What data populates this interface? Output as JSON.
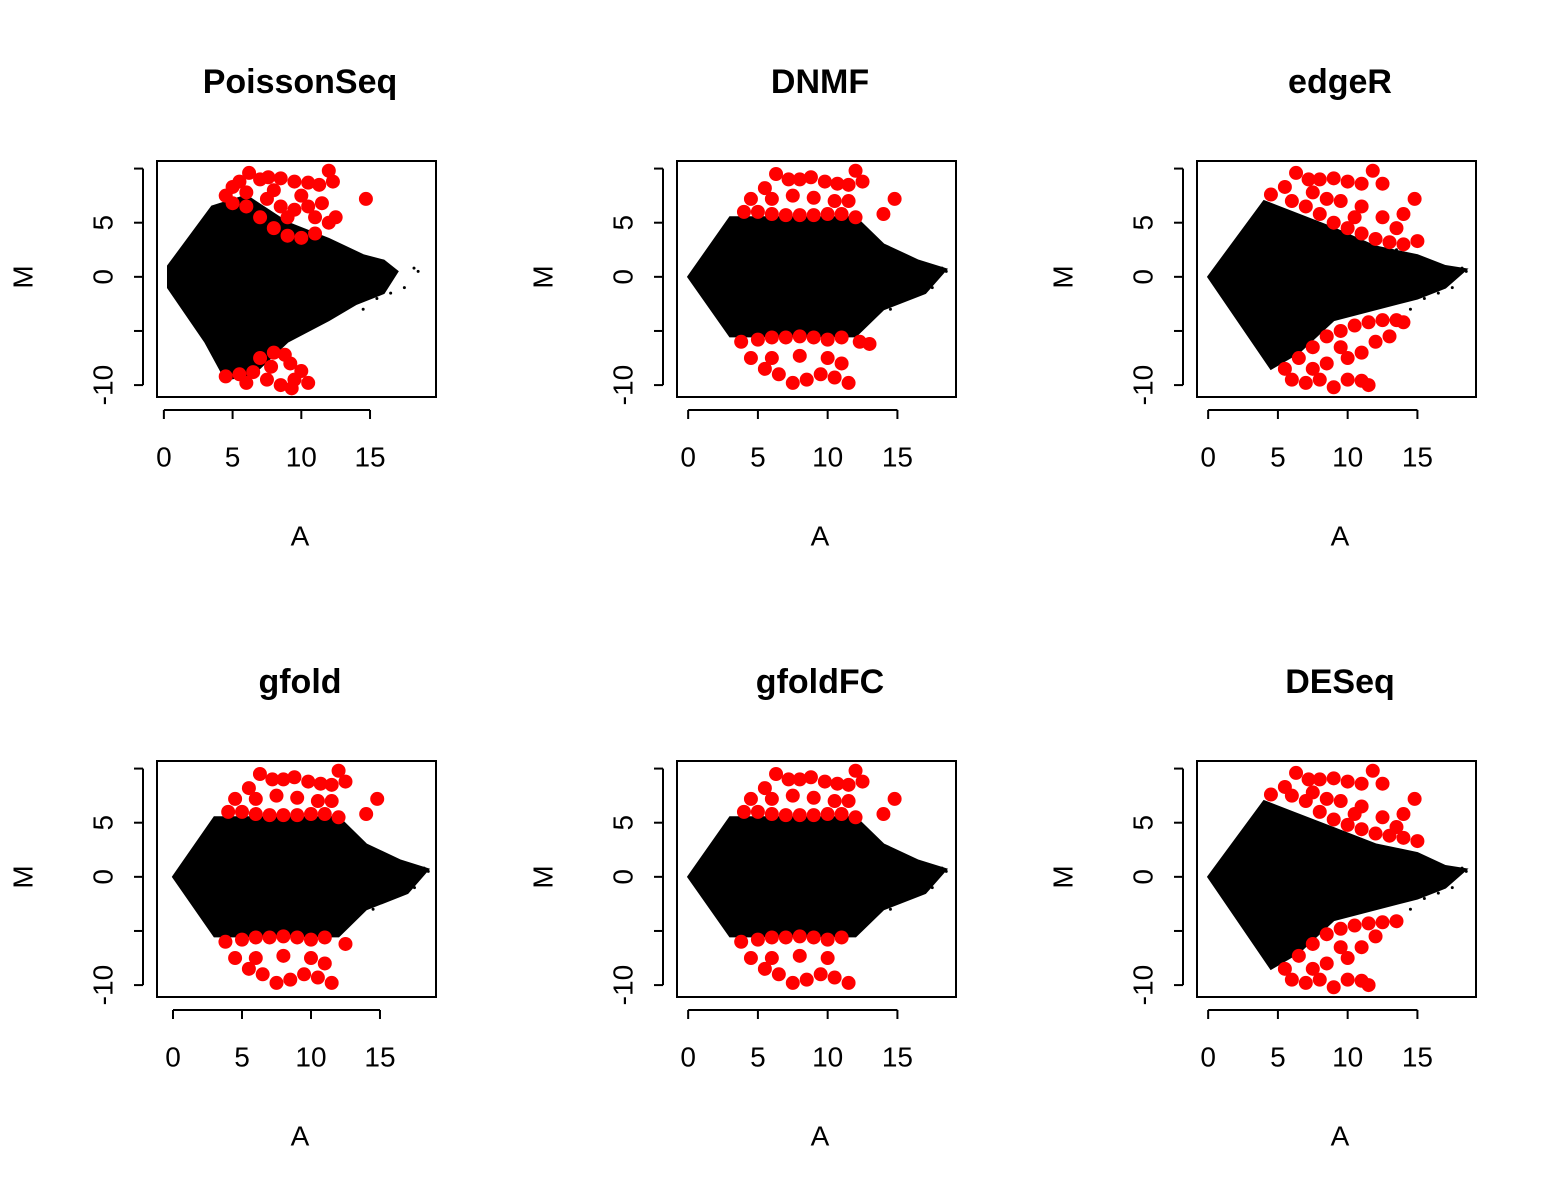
{
  "chart_data": [
    {
      "type": "scatter",
      "title": "PoissonSeq",
      "xlabel": "A",
      "ylabel": "M",
      "xlim": [
        -0.5,
        19.8
      ],
      "ylim": [
        -11.1,
        10.7
      ],
      "xticks": [
        0,
        5,
        10,
        15
      ],
      "yticks": [
        -10,
        {
          "value": -5,
          "label": null
        },
        0,
        5,
        {
          "value": 10,
          "label": null
        }
      ],
      "series": [
        {
          "kind": "area",
          "color": "#000000",
          "x": [
            0.3,
            3.5,
            6,
            9,
            12,
            14.5,
            16,
            17,
            16,
            14,
            12,
            9,
            6.5,
            4.5,
            3,
            0.3
          ],
          "y": [
            1,
            6.5,
            7.5,
            5,
            3.5,
            2,
            1.5,
            0.5,
            -1.5,
            -2.5,
            -4,
            -6,
            -9,
            -9.5,
            -6,
            -1
          ]
        },
        {
          "color": "#000000",
          "marker_size": 1.5,
          "x": [
            16,
            17.5,
            18.2,
            18.5,
            15.5,
            16.5,
            14.5,
            13.5
          ],
          "y": [
            1.2,
            -1,
            0.8,
            0.5,
            -2,
            -1.5,
            -3,
            2.5
          ]
        },
        {
          "color": "#ff0000",
          "marker_size": 7,
          "x": [
            4.5,
            5,
            5.5,
            6.2,
            7,
            7.6,
            8.5,
            9.5,
            10.5,
            11.3,
            12,
            12.3,
            14.7,
            5,
            6,
            7,
            8,
            9,
            10,
            11,
            12,
            12.5,
            6,
            7.5,
            8.5,
            9.5,
            10.5,
            11.5,
            8,
            10,
            11,
            9,
            4.5,
            5.5,
            6.5,
            7,
            8,
            8.8,
            9.2,
            7.5,
            8.5,
            9.5,
            10.5,
            6,
            10,
            9.3,
            7.8
          ],
          "y": [
            7.5,
            8.3,
            8.8,
            9.6,
            9,
            9.2,
            9.1,
            8.8,
            8.7,
            8.5,
            9.8,
            8.8,
            7.2,
            6.8,
            6.5,
            5.5,
            4.5,
            3.8,
            3.6,
            4,
            5,
            5.5,
            7.8,
            7.2,
            6.5,
            6.2,
            6.5,
            6.8,
            8,
            7.5,
            5.5,
            5.5,
            -9.2,
            -9,
            -8.8,
            -7.5,
            -7,
            -7.2,
            -8,
            -9.5,
            -10,
            -9.5,
            -9.8,
            -9.8,
            -8.7,
            -10.3,
            -8.3
          ]
        }
      ]
    },
    {
      "type": "scatter",
      "title": "DNMF",
      "xlabel": "A",
      "ylabel": "M",
      "xlim": [
        -0.8,
        19.2
      ],
      "ylim": [
        -11.1,
        10.7
      ],
      "xticks": [
        0,
        5,
        10,
        15
      ],
      "yticks": [
        -10,
        {
          "value": -5,
          "label": null
        },
        0,
        5,
        {
          "value": 10,
          "label": null
        }
      ],
      "series": [
        {
          "kind": "area",
          "color": "#000000",
          "x": [
            0,
            3,
            12,
            14,
            16.5,
            18.5,
            17,
            14,
            12,
            3
          ],
          "y": [
            0,
            5.5,
            5.5,
            3,
            1.5,
            0.7,
            -1.5,
            -3,
            -5.5,
            -5.5
          ]
        },
        {
          "color": "#000000",
          "marker_size": 1.5,
          "x": [
            16,
            17.5,
            18.2,
            18.5,
            15.5,
            16.5,
            14.5,
            13.5
          ],
          "y": [
            1.2,
            -1,
            0.8,
            0.5,
            -2,
            -1.5,
            -3,
            2.5
          ]
        },
        {
          "color": "#ff0000",
          "marker_size": 7,
          "x": [
            4,
            5,
            6,
            7,
            8,
            9,
            10,
            11,
            12,
            4.5,
            5.5,
            6.3,
            7.2,
            8,
            8.8,
            9.8,
            10.7,
            11.5,
            12,
            12.5,
            14.8,
            14,
            6,
            7.5,
            9,
            10.5,
            11.5,
            3.8,
            5,
            6,
            7,
            8,
            9,
            10,
            11,
            12.3,
            13,
            4.5,
            5.5,
            6.5,
            7.5,
            8.5,
            9.5,
            10.5,
            11.5,
            6,
            8,
            10,
            11
          ],
          "y": [
            6,
            6,
            5.8,
            5.7,
            5.7,
            5.7,
            5.8,
            5.8,
            5.5,
            7.2,
            8.2,
            9.5,
            9,
            9,
            9.2,
            8.8,
            8.6,
            8.5,
            9.8,
            8.8,
            7.2,
            5.8,
            7.2,
            7.5,
            7.3,
            7,
            7,
            -6,
            -5.8,
            -5.6,
            -5.6,
            -5.5,
            -5.6,
            -5.8,
            -5.6,
            -6,
            -6.2,
            -7.5,
            -8.5,
            -9,
            -9.8,
            -9.5,
            -9,
            -9.3,
            -9.8,
            -7.5,
            -7.3,
            -7.5,
            -8
          ]
        }
      ]
    },
    {
      "type": "scatter",
      "title": "edgeR",
      "xlabel": "A",
      "ylabel": "M",
      "xlim": [
        -0.8,
        19.2
      ],
      "ylim": [
        -11.1,
        10.7
      ],
      "xticks": [
        0,
        5,
        10,
        15
      ],
      "yticks": [
        -10,
        {
          "value": -5,
          "label": null
        },
        0,
        5,
        {
          "value": 10,
          "label": null
        }
      ],
      "series": [
        {
          "kind": "area",
          "color": "#000000",
          "x": [
            0,
            4,
            6,
            9,
            12,
            15,
            17,
            18.5,
            17,
            15,
            12,
            9,
            6.5,
            4.5
          ],
          "y": [
            0,
            7,
            6,
            4.5,
            2.8,
            2,
            1,
            0.7,
            -1,
            -2,
            -3,
            -4,
            -7,
            -8.5
          ]
        },
        {
          "color": "#000000",
          "marker_size": 1.5,
          "x": [
            16,
            17.5,
            18.2,
            18.5,
            15.5,
            16.5,
            14.5,
            13.5
          ],
          "y": [
            1.2,
            -1,
            0.8,
            0.5,
            -2,
            -1.5,
            -3,
            2.5
          ]
        },
        {
          "color": "#ff0000",
          "marker_size": 7,
          "x": [
            4.5,
            5.5,
            6.3,
            7.2,
            8,
            9,
            10,
            11,
            11.8,
            12.5,
            14.8,
            14,
            15,
            6,
            7,
            8,
            9,
            10,
            11,
            12,
            13,
            14,
            7.5,
            9.5,
            11,
            12.5,
            13.5,
            10.5,
            8.5,
            5.5,
            6.5,
            7.5,
            8.5,
            9.5,
            10.5,
            11.5,
            12.5,
            13.5,
            14,
            13,
            12,
            11,
            6,
            7,
            8,
            9,
            10,
            11,
            11.5,
            8.5,
            10,
            7.5,
            9.5
          ],
          "y": [
            7.6,
            8.3,
            9.6,
            9,
            9,
            9.1,
            8.8,
            8.6,
            9.8,
            8.6,
            7.2,
            5.8,
            3.3,
            7,
            6.5,
            5.8,
            5,
            4.5,
            4,
            3.5,
            3.2,
            3,
            7.8,
            7,
            6.5,
            5.5,
            4.5,
            5.5,
            7.2,
            -8.5,
            -7.5,
            -6.5,
            -5.5,
            -5,
            -4.5,
            -4.2,
            -4,
            -4,
            -4.2,
            -5.5,
            -6,
            -7,
            -9.5,
            -9.8,
            -9.5,
            -10.2,
            -9.5,
            -9.6,
            -10,
            -8,
            -7.5,
            -8.5,
            -6.5
          ]
        }
      ]
    },
    {
      "type": "scatter",
      "title": "gfold",
      "xlabel": "A",
      "ylabel": "M",
      "xlim": [
        -1.16,
        19.06
      ],
      "ylim": [
        -11.1,
        10.7
      ],
      "xticks": [
        0,
        5,
        10,
        15
      ],
      "yticks": [
        -10,
        {
          "value": -5,
          "label": null
        },
        0,
        5,
        {
          "value": 10,
          "label": null
        }
      ],
      "series": [
        {
          "kind": "area",
          "color": "#000000",
          "x": [
            0,
            3,
            12,
            14,
            16.5,
            18.5,
            17,
            14,
            12,
            3
          ],
          "y": [
            0,
            5.5,
            5.5,
            3,
            1.5,
            0.7,
            -1.5,
            -3,
            -5.5,
            -5.5
          ]
        },
        {
          "color": "#000000",
          "marker_size": 1.5,
          "x": [
            16,
            17.5,
            18.2,
            18.5,
            15.5,
            16.5,
            14.5,
            13.5
          ],
          "y": [
            1.2,
            -1,
            0.8,
            0.5,
            -2,
            -1.5,
            -3,
            2.5
          ]
        },
        {
          "color": "#ff0000",
          "marker_size": 7,
          "x": [
            4,
            5,
            6,
            7,
            8,
            9,
            10,
            11,
            12,
            4.5,
            5.5,
            6.3,
            7.2,
            8,
            8.8,
            9.8,
            10.7,
            11.5,
            12,
            12.5,
            14.8,
            14,
            6,
            7.5,
            9,
            10.5,
            11.5,
            3.8,
            5,
            6,
            7,
            8,
            9,
            10,
            11,
            12.5,
            4.5,
            5.5,
            6.5,
            7.5,
            8.5,
            9.5,
            10.5,
            11.5,
            6,
            8,
            10,
            11
          ],
          "y": [
            6,
            6,
            5.8,
            5.7,
            5.7,
            5.7,
            5.8,
            5.8,
            5.5,
            7.2,
            8.2,
            9.5,
            9,
            9,
            9.2,
            8.8,
            8.6,
            8.5,
            9.8,
            8.8,
            7.2,
            5.8,
            7.2,
            7.5,
            7.3,
            7,
            7,
            -6,
            -5.8,
            -5.6,
            -5.6,
            -5.5,
            -5.6,
            -5.8,
            -5.6,
            -6.2,
            -7.5,
            -8.5,
            -9,
            -9.8,
            -9.5,
            -9,
            -9.3,
            -9.8,
            -7.5,
            -7.3,
            -7.5,
            -8
          ]
        }
      ]
    },
    {
      "type": "scatter",
      "title": "gfoldFC",
      "xlabel": "A",
      "ylabel": "M",
      "xlim": [
        -0.8,
        19.2
      ],
      "ylim": [
        -11.1,
        10.7
      ],
      "xticks": [
        0,
        5,
        10,
        15
      ],
      "yticks": [
        -10,
        {
          "value": -5,
          "label": null
        },
        0,
        5,
        {
          "value": 10,
          "label": null
        }
      ],
      "series": [
        {
          "kind": "area",
          "color": "#000000",
          "x": [
            0,
            3,
            12,
            14,
            16.5,
            18.5,
            17,
            14,
            12,
            3
          ],
          "y": [
            0,
            5.5,
            5.5,
            3,
            1.5,
            0.7,
            -1.5,
            -3,
            -5.5,
            -5.5
          ]
        },
        {
          "color": "#000000",
          "marker_size": 1.5,
          "x": [
            16,
            17.5,
            18.2,
            18.5,
            15.5,
            16.5,
            14.5,
            13.5
          ],
          "y": [
            1.2,
            -1,
            0.8,
            0.5,
            -2,
            -1.5,
            -3,
            2.5
          ]
        },
        {
          "color": "#ff0000",
          "marker_size": 7,
          "x": [
            4,
            5,
            6,
            7,
            8,
            9,
            10,
            11,
            12,
            4.5,
            5.5,
            6.3,
            7.2,
            8,
            8.8,
            9.8,
            10.7,
            11.5,
            12,
            12.5,
            14.8,
            14,
            6,
            7.5,
            9,
            10.5,
            11.5,
            3.8,
            5,
            6,
            7,
            8,
            9,
            10,
            11,
            4.5,
            5.5,
            6.5,
            7.5,
            8.5,
            9.5,
            10.5,
            11.5,
            6,
            8,
            10
          ],
          "y": [
            6,
            6,
            5.8,
            5.7,
            5.7,
            5.7,
            5.8,
            5.8,
            5.5,
            7.2,
            8.2,
            9.5,
            9,
            9,
            9.2,
            8.8,
            8.6,
            8.5,
            9.8,
            8.8,
            7.2,
            5.8,
            7.2,
            7.5,
            7.3,
            7,
            7,
            -6,
            -5.8,
            -5.6,
            -5.6,
            -5.5,
            -5.6,
            -5.8,
            -5.6,
            -7.5,
            -8.5,
            -9,
            -9.8,
            -9.5,
            -9,
            -9.3,
            -9.8,
            -7.5,
            -7.3,
            -7.5
          ]
        }
      ]
    },
    {
      "type": "scatter",
      "title": "DESeq",
      "xlabel": "A",
      "ylabel": "M",
      "xlim": [
        -0.8,
        19.2
      ],
      "ylim": [
        -11.1,
        10.7
      ],
      "xticks": [
        0,
        5,
        10,
        15
      ],
      "yticks": [
        -10,
        {
          "value": -5,
          "label": null
        },
        0,
        5,
        {
          "value": 10,
          "label": null
        }
      ],
      "series": [
        {
          "kind": "area",
          "color": "#000000",
          "x": [
            0,
            4,
            6,
            9,
            12,
            15,
            17,
            18.5,
            17,
            15,
            12,
            9,
            6.5,
            4.5
          ],
          "y": [
            0,
            7,
            6,
            4.5,
            3,
            2.2,
            1,
            0.7,
            -1,
            -2,
            -3,
            -4,
            -7,
            -8.5
          ]
        },
        {
          "color": "#000000",
          "marker_size": 1.5,
          "x": [
            16,
            17.5,
            18.2,
            18.5,
            15.5,
            16.5,
            14.5,
            13.5
          ],
          "y": [
            1.2,
            -1,
            0.8,
            0.5,
            -2,
            -1.5,
            -3,
            2.5
          ]
        },
        {
          "color": "#ff0000",
          "marker_size": 7,
          "x": [
            4.5,
            5.5,
            6.3,
            7.2,
            8,
            9,
            10,
            11,
            11.8,
            12.5,
            14.8,
            14,
            15,
            6,
            7,
            8,
            9,
            10,
            11,
            12,
            13,
            14,
            7.5,
            9.5,
            11,
            12.5,
            13.5,
            10.5,
            8.5,
            5.5,
            6.5,
            7.5,
            8.5,
            9.5,
            10.5,
            11.5,
            12.5,
            13.5,
            12,
            11,
            6,
            7,
            8,
            9,
            10,
            11,
            11.5,
            8.5,
            10,
            7.5,
            9.5
          ],
          "y": [
            7.6,
            8.3,
            9.6,
            9,
            9,
            9.1,
            8.8,
            8.6,
            9.8,
            8.6,
            7.2,
            5.8,
            3.3,
            7.5,
            7,
            6,
            5.3,
            4.8,
            4.4,
            4,
            3.8,
            3.6,
            7.8,
            7,
            6.5,
            5.5,
            4.6,
            5.8,
            7.2,
            -8.5,
            -7.3,
            -6.2,
            -5.3,
            -4.8,
            -4.5,
            -4.3,
            -4.2,
            -4.1,
            -5.5,
            -6.5,
            -9.5,
            -9.8,
            -9.5,
            -10.2,
            -9.5,
            -9.6,
            -10,
            -8,
            -7.5,
            -8.5,
            -6.5
          ]
        }
      ]
    }
  ]
}
